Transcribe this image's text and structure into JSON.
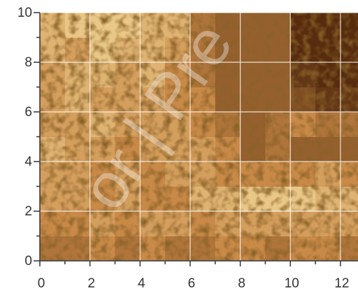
{
  "chart_data": {
    "type": "heatmap",
    "x": [
      0.5,
      1.5,
      2.5,
      3.5,
      4.5,
      5.5,
      6.5,
      7.5,
      8.5,
      9.5,
      10.5,
      11.5,
      12.5
    ],
    "y": [
      0.5,
      1.5,
      2.5,
      3.5,
      4.5,
      5.5,
      6.5,
      7.5,
      8.5,
      9.5
    ],
    "z": [
      [
        0.4,
        0.4,
        0.5,
        0.4,
        0.5,
        0.4,
        0.4,
        0.5,
        0.5,
        0.4,
        0.5,
        0.5,
        0.4
      ],
      [
        0.5,
        0.5,
        0.6,
        0.5,
        0.6,
        0.6,
        0.5,
        0.6,
        0.6,
        0.6,
        0.6,
        0.6,
        0.6
      ],
      [
        0.6,
        0.6,
        0.5,
        0.6,
        0.5,
        0.5,
        0.7,
        0.7,
        0.8,
        0.8,
        0.8,
        0.7,
        0.7
      ],
      [
        0.6,
        0.6,
        0.5,
        0.6,
        0.5,
        0.6,
        0.6,
        0.5,
        0.5,
        0.5,
        0.5,
        0.6,
        0.5
      ],
      [
        0.7,
        0.6,
        0.6,
        0.5,
        0.6,
        0.6,
        0.6,
        0.5,
        0.3,
        0.4,
        0.3,
        0.3,
        0.3
      ],
      [
        0.6,
        0.6,
        0.7,
        0.6,
        0.6,
        0.6,
        0.5,
        0.4,
        0.3,
        0.4,
        0.5,
        0.4,
        0.4
      ],
      [
        0.6,
        0.7,
        0.6,
        0.6,
        0.6,
        0.5,
        0.5,
        0.3,
        0.3,
        0.3,
        0.2,
        0.1,
        0.1
      ],
      [
        0.6,
        0.7,
        0.7,
        0.6,
        0.7,
        0.5,
        0.4,
        0.3,
        0.3,
        0.3,
        0.1,
        0.05,
        0.05
      ],
      [
        0.7,
        0.6,
        0.8,
        0.7,
        0.7,
        0.6,
        0.4,
        0.3,
        0.3,
        0.3,
        0.05,
        0.05,
        0.05
      ],
      [
        0.7,
        0.8,
        0.8,
        0.8,
        0.7,
        0.7,
        0.4,
        0.3,
        0.3,
        0.3,
        0.05,
        0.05,
        0.05
      ]
    ],
    "colormap": [
      "#4a2208",
      "#c98a48",
      "#fff0b0"
    ],
    "xlim": [
      0,
      12.7
    ],
    "ylim": [
      0,
      10
    ],
    "xticks": [
      0,
      2,
      4,
      6,
      8,
      10,
      12
    ],
    "yticks": [
      0,
      2,
      4,
      6,
      8,
      10
    ],
    "xminor": [
      1,
      3,
      5,
      7,
      9,
      11
    ],
    "yminor": [
      1,
      3,
      5,
      7,
      9
    ],
    "grid": true,
    "grid_color": "#ffffff",
    "watermark": "or | Pre"
  }
}
